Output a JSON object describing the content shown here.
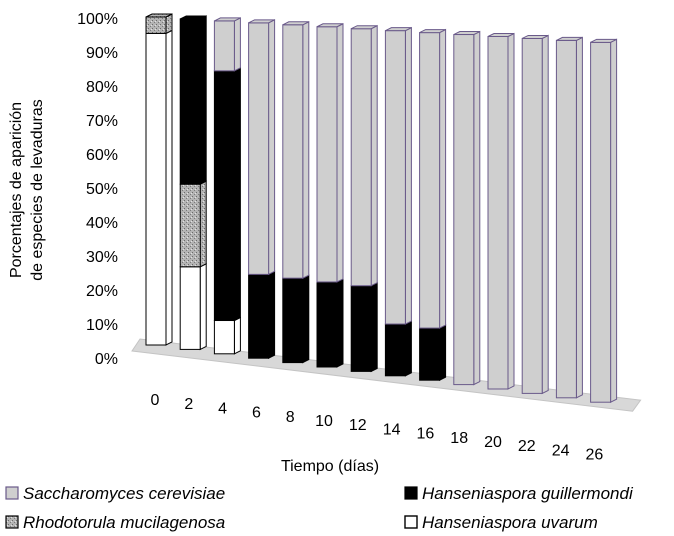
{
  "chart_data": {
    "type": "bar",
    "stacked": true,
    "percent": true,
    "categories": [
      "0",
      "2",
      "4",
      "6",
      "8",
      "10",
      "12",
      "14",
      "16",
      "18",
      "20",
      "22",
      "24",
      "26"
    ],
    "xlabel": "Tiempo (días)",
    "ylabel_line1": "Porcentajes de aparición",
    "ylabel_line2": "de especies de levaduras",
    "ylim": [
      0,
      100
    ],
    "yticks": [
      "0%",
      "10%",
      "20%",
      "30%",
      "40%",
      "50%",
      "60%",
      "70%",
      "80%",
      "90%",
      "100%"
    ],
    "series": [
      {
        "name": "Hanseniaspora uvarum",
        "color": "#ffffff",
        "values": [
          95,
          25,
          10,
          0,
          0,
          0,
          0,
          0,
          0,
          0,
          0,
          0,
          0,
          0
        ]
      },
      {
        "name": "Rhodotorula mucilagenosa",
        "color": "#a8a8a8",
        "values": [
          5,
          25,
          0,
          0,
          0,
          0,
          0,
          0,
          0,
          0,
          0,
          0,
          0,
          0
        ]
      },
      {
        "name": "Hanseniaspora guillermondi",
        "color": "#000000",
        "values": [
          0,
          50,
          75,
          25,
          25,
          25,
          25,
          15,
          15,
          0,
          0,
          0,
          0,
          0
        ]
      },
      {
        "name": "Saccharomyces cerevisiae",
        "color": "#cfcfcf",
        "values": [
          0,
          0,
          15,
          75,
          75,
          75,
          75,
          85,
          85,
          100,
          100,
          100,
          100,
          100
        ]
      }
    ],
    "legend_position": "bottom",
    "legend": [
      {
        "label": "Saccharomyces cerevisiae",
        "color": "#cfcfcf"
      },
      {
        "label": "Hanseniaspora guillermondi",
        "color": "#000000"
      },
      {
        "label": "Rhodotorula mucilagenosa",
        "color": "#a8a8a8"
      },
      {
        "label": "Hanseniaspora uvarum",
        "color": "#ffffff"
      }
    ]
  }
}
